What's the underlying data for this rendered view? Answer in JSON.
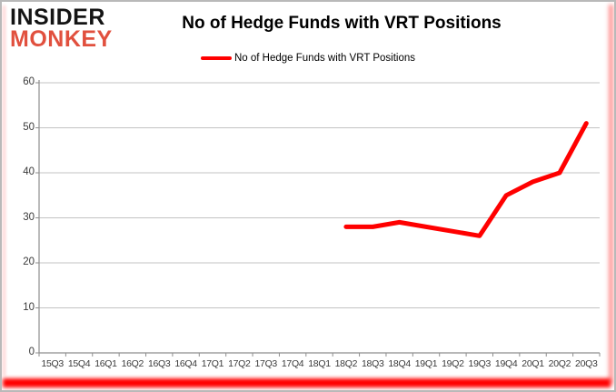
{
  "brand": {
    "line1": "INSIDER",
    "line2": "MONKEY"
  },
  "header": {
    "title": "No of Hedge Funds with VRT Positions"
  },
  "legend": {
    "label": "No of Hedge Funds with VRT Positions"
  },
  "chart_data": {
    "type": "line",
    "title": "No of Hedge Funds with VRT Positions",
    "categories": [
      "15Q3",
      "15Q4",
      "16Q1",
      "16Q2",
      "16Q3",
      "16Q4",
      "17Q1",
      "17Q2",
      "17Q3",
      "17Q4",
      "18Q1",
      "18Q2",
      "18Q3",
      "18Q4",
      "19Q1",
      "19Q2",
      "19Q3",
      "19Q4",
      "20Q1",
      "20Q2",
      "20Q3"
    ],
    "series": [
      {
        "name": "No of Hedge Funds with VRT Positions",
        "color": "#ff0000",
        "values": [
          null,
          null,
          null,
          null,
          null,
          null,
          null,
          null,
          null,
          null,
          null,
          28,
          28,
          29,
          28,
          27,
          26,
          35,
          38,
          40,
          51
        ]
      }
    ],
    "ylim": [
      0,
      60
    ],
    "yticks": [
      0,
      10,
      20,
      30,
      40,
      50,
      60
    ],
    "xlabel": "",
    "ylabel": "",
    "grid": true,
    "legend_position": "top"
  },
  "colors": {
    "line_red": "#ff0000",
    "brand_red": "#e1503e",
    "grid_gray": "#c3c3c3",
    "axis_gray": "#8e8e8e",
    "border_red": "#ff0000"
  }
}
